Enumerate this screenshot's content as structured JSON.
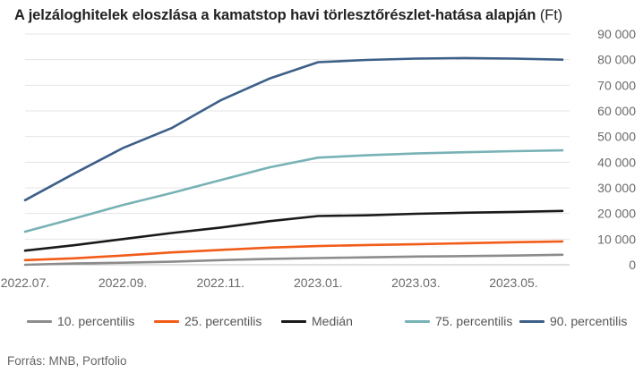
{
  "chart_data": {
    "type": "line",
    "title": "A jelzáloghitelek eloszlása a kamatstop havi törlesztőrészlet-hatása alapján",
    "title_unit": "(Ft)",
    "x": [
      "2022.07.",
      "2022.08.",
      "2022.09.",
      "2022.10.",
      "2022.11.",
      "2022.12.",
      "2023.01.",
      "2023.02.",
      "2023.03.",
      "2023.04.",
      "2023.05.",
      "2023.06."
    ],
    "xtick_labels": [
      "2022.07.",
      "2022.09.",
      "2022.11.",
      "2023.01.",
      "2023.03.",
      "2023.05."
    ],
    "ylim": [
      0,
      90000
    ],
    "yticks": [
      0,
      10000,
      20000,
      30000,
      40000,
      50000,
      60000,
      70000,
      80000,
      90000
    ],
    "ytick_labels": [
      "0",
      "10 000",
      "20 000",
      "30 000",
      "40 000",
      "50 000",
      "60 000",
      "70 000",
      "80 000",
      "90 000"
    ],
    "grid": true,
    "legend_position": "bottom",
    "series": [
      {
        "name": "10. percentilis",
        "color": "#8c8c8c",
        "values": [
          0,
          500,
          800,
          1200,
          1800,
          2300,
          2600,
          2900,
          3200,
          3400,
          3600,
          3900
        ]
      },
      {
        "name": "25. percentilis",
        "color": "#f25c19",
        "values": [
          1800,
          2500,
          3600,
          4800,
          5800,
          6700,
          7300,
          7700,
          8000,
          8400,
          8800,
          9100
        ]
      },
      {
        "name": "Medián",
        "color": "#1a1a1a",
        "values": [
          5500,
          7600,
          10000,
          12400,
          14500,
          17000,
          19000,
          19300,
          19900,
          20300,
          20600,
          21000
        ]
      },
      {
        "name": "75. percentilis",
        "color": "#78b2b5",
        "values": [
          12900,
          18000,
          23300,
          28000,
          33000,
          38000,
          41800,
          42700,
          43400,
          43900,
          44300,
          44600
        ]
      },
      {
        "name": "90. percentilis",
        "color": "#3d5f88",
        "values": [
          25200,
          35500,
          45500,
          53300,
          64100,
          72600,
          79000,
          79900,
          80400,
          80600,
          80400,
          80000
        ]
      }
    ]
  },
  "source": "Forrás: MNB, Portfolio"
}
